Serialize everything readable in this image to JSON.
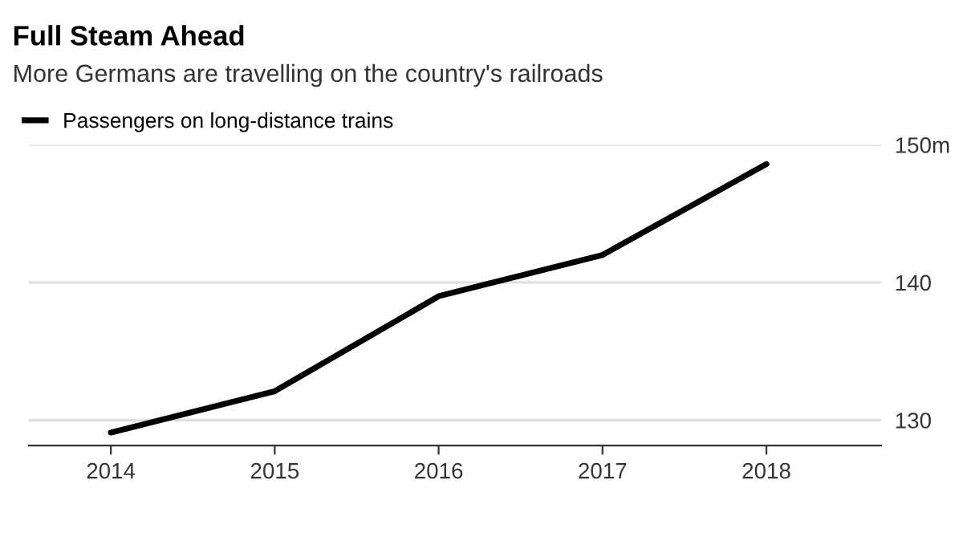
{
  "chart_data": {
    "type": "line",
    "title": "Full Steam Ahead",
    "subtitle": "More Germans are travelling on the country's railroads",
    "x": [
      2014,
      2015,
      2016,
      2017,
      2018
    ],
    "series": [
      {
        "name": "Passengers on long-distance trains",
        "color": "#000000",
        "values": [
          129.1,
          132.1,
          139.0,
          142.0,
          148.6
        ]
      }
    ],
    "xlim": [
      2013.5,
      2018.7
    ],
    "xticks": [
      2014,
      2015,
      2016,
      2017,
      2018
    ],
    "ylim": [
      128.15,
      150
    ],
    "yticks": [
      130,
      140,
      {
        "value": 150,
        "label": "150m"
      }
    ],
    "grid": "y",
    "legend": "top left",
    "marker": "none",
    "line_style": "solid"
  }
}
